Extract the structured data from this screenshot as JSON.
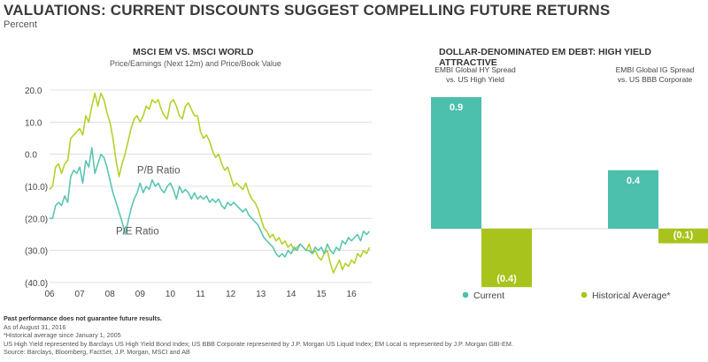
{
  "header": {
    "title": "VALUATIONS: CURRENT DISCOUNTS SUGGEST COMPELLING FUTURE RETURNS",
    "subtitle": "Percent"
  },
  "left_panel": {
    "title": "MSCI EM VS. MSCI WORLD",
    "subtitle": "Price/Earnings (Next 12m) and Price/Book Value"
  },
  "right_panel": {
    "title": "DOLLAR-DENOMINATED EM DEBT: HIGH YIELD ATTRACTIVE"
  },
  "footnotes": {
    "line1": "Past performance does not guarantee future results.",
    "line2": "As of August 31, 2016",
    "line3": "*Historical average since January 1, 2005",
    "line4": "US High Yield represented by Barclays US High Yield Bond Index; US BBB Corporate represented by J.P. Morgan US Liquid Index; EM Local is represented by J.P. Morgan GBI-EM.",
    "line5": "Source: Barclays, Bloomberg, FactSet, J.P. Morgan, MSCI and AB"
  },
  "colors": {
    "pb_line": "#b7cf2e",
    "pe_line": "#5cc5b3",
    "current_bar": "#4dbfad",
    "historical_bar": "#a8c41c",
    "grid": "#d9d9d9",
    "text": "#444444"
  },
  "chart_data": [
    {
      "type": "line",
      "title": "MSCI EM VS. MSCI WORLD",
      "subtitle": "Price/Earnings (Next 12m) and Price/Book Value",
      "ylim": [
        -40,
        20
      ],
      "yticks": [
        20,
        10,
        0,
        -10,
        -20,
        -30,
        -40
      ],
      "ytick_labels": [
        "20.0",
        "10.0",
        "0.0",
        "(10.0)",
        "(20.0)",
        "(30.0)",
        "(40.0)"
      ],
      "xlim": [
        2006.0,
        2016.67
      ],
      "xticks": [
        2006,
        2007,
        2008,
        2009,
        2010,
        2011,
        2012,
        2013,
        2014,
        2015,
        2016
      ],
      "xtick_labels": [
        "06",
        "07",
        "08",
        "09",
        "10",
        "11",
        "12",
        "13",
        "14",
        "15",
        "16"
      ],
      "grid": "horizontal",
      "series": [
        {
          "name": "P/B Ratio",
          "color_key": "pb_line",
          "label_at": [
            2008.9,
            -6
          ],
          "points": [
            [
              2006.0,
              -11
            ],
            [
              2006.1,
              -10
            ],
            [
              2006.2,
              -4
            ],
            [
              2006.3,
              -3
            ],
            [
              2006.4,
              -6
            ],
            [
              2006.5,
              -3
            ],
            [
              2006.6,
              -2
            ],
            [
              2006.7,
              5
            ],
            [
              2006.8,
              6
            ],
            [
              2006.9,
              7
            ],
            [
              2007.0,
              8
            ],
            [
              2007.1,
              6
            ],
            [
              2007.2,
              12
            ],
            [
              2007.3,
              10
            ],
            [
              2007.4,
              15
            ],
            [
              2007.5,
              19
            ],
            [
              2007.6,
              15
            ],
            [
              2007.7,
              19
            ],
            [
              2007.8,
              17
            ],
            [
              2007.9,
              13
            ],
            [
              2008.0,
              10
            ],
            [
              2008.1,
              5
            ],
            [
              2008.2,
              -2
            ],
            [
              2008.3,
              -7
            ],
            [
              2008.4,
              -3
            ],
            [
              2008.5,
              0
            ],
            [
              2008.6,
              4
            ],
            [
              2008.7,
              8
            ],
            [
              2008.8,
              11
            ],
            [
              2008.9,
              12
            ],
            [
              2009.0,
              10
            ],
            [
              2009.1,
              12
            ],
            [
              2009.2,
              15
            ],
            [
              2009.3,
              14
            ],
            [
              2009.4,
              17
            ],
            [
              2009.5,
              16
            ],
            [
              2009.6,
              17
            ],
            [
              2009.7,
              14
            ],
            [
              2009.8,
              12
            ],
            [
              2009.9,
              11
            ],
            [
              2010.0,
              16
            ],
            [
              2010.1,
              17
            ],
            [
              2010.2,
              15
            ],
            [
              2010.3,
              12
            ],
            [
              2010.4,
              11
            ],
            [
              2010.5,
              15
            ],
            [
              2010.6,
              16
            ],
            [
              2010.7,
              14
            ],
            [
              2010.8,
              12
            ],
            [
              2010.9,
              12
            ],
            [
              2011.0,
              7
            ],
            [
              2011.1,
              5
            ],
            [
              2011.2,
              6
            ],
            [
              2011.3,
              4
            ],
            [
              2011.4,
              1
            ],
            [
              2011.5,
              -1
            ],
            [
              2011.6,
              0
            ],
            [
              2011.7,
              -3
            ],
            [
              2011.8,
              -5
            ],
            [
              2011.9,
              -4
            ],
            [
              2012.0,
              -7
            ],
            [
              2012.1,
              -10
            ],
            [
              2012.2,
              -9
            ],
            [
              2012.3,
              -10
            ],
            [
              2012.4,
              -11
            ],
            [
              2012.5,
              -9
            ],
            [
              2012.6,
              -12
            ],
            [
              2012.7,
              -14
            ],
            [
              2012.8,
              -15
            ],
            [
              2012.9,
              -17
            ],
            [
              2013.0,
              -20
            ],
            [
              2013.1,
              -23
            ],
            [
              2013.2,
              -24
            ],
            [
              2013.3,
              -26
            ],
            [
              2013.4,
              -25
            ],
            [
              2013.5,
              -27
            ],
            [
              2013.6,
              -26
            ],
            [
              2013.7,
              -28
            ],
            [
              2013.8,
              -27
            ],
            [
              2013.9,
              -29
            ],
            [
              2014.0,
              -28
            ],
            [
              2014.1,
              -30
            ],
            [
              2014.2,
              -29
            ],
            [
              2014.3,
              -28
            ],
            [
              2014.4,
              -29
            ],
            [
              2014.5,
              -30
            ],
            [
              2014.6,
              -28
            ],
            [
              2014.7,
              -31
            ],
            [
              2014.8,
              -30
            ],
            [
              2014.9,
              -32
            ],
            [
              2015.0,
              -33
            ],
            [
              2015.1,
              -31
            ],
            [
              2015.2,
              -30
            ],
            [
              2015.3,
              -34
            ],
            [
              2015.4,
              -37
            ],
            [
              2015.5,
              -35
            ],
            [
              2015.6,
              -33
            ],
            [
              2015.7,
              -36
            ],
            [
              2015.8,
              -34
            ],
            [
              2015.9,
              -35
            ],
            [
              2016.0,
              -33
            ],
            [
              2016.1,
              -34
            ],
            [
              2016.2,
              -31
            ],
            [
              2016.3,
              -32
            ],
            [
              2016.4,
              -30
            ],
            [
              2016.5,
              -31
            ],
            [
              2016.6,
              -29
            ]
          ]
        },
        {
          "name": "P/E Ratio",
          "color_key": "pe_line",
          "label_at": [
            2008.2,
            -25
          ],
          "points": [
            [
              2006.0,
              -20
            ],
            [
              2006.1,
              -20
            ],
            [
              2006.2,
              -16
            ],
            [
              2006.3,
              -15
            ],
            [
              2006.4,
              -16
            ],
            [
              2006.5,
              -13
            ],
            [
              2006.6,
              -15
            ],
            [
              2006.7,
              -7
            ],
            [
              2006.8,
              -5
            ],
            [
              2006.9,
              -6
            ],
            [
              2007.0,
              -4
            ],
            [
              2007.1,
              -9
            ],
            [
              2007.2,
              -2
            ],
            [
              2007.3,
              -4
            ],
            [
              2007.4,
              2
            ],
            [
              2007.5,
              -6
            ],
            [
              2007.6,
              -3
            ],
            [
              2007.7,
              0
            ],
            [
              2007.8,
              -1
            ],
            [
              2007.9,
              -4
            ],
            [
              2008.0,
              -8
            ],
            [
              2008.1,
              -12
            ],
            [
              2008.2,
              -15
            ],
            [
              2008.3,
              -18
            ],
            [
              2008.4,
              -21
            ],
            [
              2008.5,
              -25
            ],
            [
              2008.6,
              -21
            ],
            [
              2008.7,
              -17
            ],
            [
              2008.8,
              -14
            ],
            [
              2008.9,
              -12
            ],
            [
              2009.0,
              -9
            ],
            [
              2009.1,
              -12
            ],
            [
              2009.2,
              -10
            ],
            [
              2009.3,
              -11
            ],
            [
              2009.4,
              -8
            ],
            [
              2009.5,
              -10
            ],
            [
              2009.6,
              -9
            ],
            [
              2009.7,
              -11
            ],
            [
              2009.8,
              -12
            ],
            [
              2009.9,
              -10
            ],
            [
              2010.0,
              -9
            ],
            [
              2010.1,
              -11
            ],
            [
              2010.2,
              -14
            ],
            [
              2010.3,
              -10
            ],
            [
              2010.4,
              -12
            ],
            [
              2010.5,
              -11
            ],
            [
              2010.6,
              -12
            ],
            [
              2010.7,
              -14
            ],
            [
              2010.8,
              -12
            ],
            [
              2010.9,
              -14
            ],
            [
              2011.0,
              -13
            ],
            [
              2011.1,
              -14
            ],
            [
              2011.2,
              -13
            ],
            [
              2011.3,
              -15
            ],
            [
              2011.4,
              -14
            ],
            [
              2011.5,
              -15
            ],
            [
              2011.6,
              -14
            ],
            [
              2011.7,
              -16
            ],
            [
              2011.8,
              -17
            ],
            [
              2011.9,
              -15
            ],
            [
              2012.0,
              -16
            ],
            [
              2012.1,
              -15
            ],
            [
              2012.2,
              -16
            ],
            [
              2012.3,
              -17
            ],
            [
              2012.4,
              -18
            ],
            [
              2012.5,
              -17
            ],
            [
              2012.6,
              -19
            ],
            [
              2012.7,
              -20
            ],
            [
              2012.8,
              -21
            ],
            [
              2012.9,
              -22
            ],
            [
              2013.0,
              -24
            ],
            [
              2013.1,
              -26
            ],
            [
              2013.2,
              -27
            ],
            [
              2013.3,
              -28
            ],
            [
              2013.4,
              -29
            ],
            [
              2013.5,
              -31
            ],
            [
              2013.6,
              -32
            ],
            [
              2013.7,
              -31
            ],
            [
              2013.8,
              -32
            ],
            [
              2013.9,
              -30
            ],
            [
              2014.0,
              -31
            ],
            [
              2014.1,
              -29
            ],
            [
              2014.2,
              -30
            ],
            [
              2014.3,
              -28
            ],
            [
              2014.4,
              -29
            ],
            [
              2014.5,
              -30
            ],
            [
              2014.6,
              -30
            ],
            [
              2014.7,
              -31
            ],
            [
              2014.8,
              -29
            ],
            [
              2014.9,
              -30
            ],
            [
              2015.0,
              -29
            ],
            [
              2015.1,
              -31
            ],
            [
              2015.2,
              -28
            ],
            [
              2015.3,
              -30
            ],
            [
              2015.4,
              -31
            ],
            [
              2015.5,
              -29
            ],
            [
              2015.6,
              -30
            ],
            [
              2015.7,
              -27
            ],
            [
              2015.8,
              -28
            ],
            [
              2015.9,
              -26
            ],
            [
              2016.0,
              -27
            ],
            [
              2016.1,
              -26
            ],
            [
              2016.2,
              -25
            ],
            [
              2016.3,
              -27
            ],
            [
              2016.4,
              -24
            ],
            [
              2016.5,
              -25
            ],
            [
              2016.6,
              -24
            ]
          ]
        }
      ]
    },
    {
      "type": "bar",
      "title": "DOLLAR-DENOMINATED EM DEBT: HIGH YIELD ATTRACTIVE",
      "categories": [
        "EMBI Global HY Spread\nvs. US High Yield",
        "EMBI Global IG Spread\nvs. US BBB Corporate"
      ],
      "series": [
        {
          "name": "Current",
          "color_key": "current_bar",
          "values": [
            0.9,
            0.4
          ],
          "labels": [
            "0.9",
            "0.4"
          ]
        },
        {
          "name": "Historical Average*",
          "color_key": "historical_bar",
          "values": [
            -0.4,
            -0.1
          ],
          "labels": [
            "(0.4)",
            "(0.1)"
          ]
        }
      ],
      "ylim": [
        -0.45,
        1.0
      ],
      "legend": "bottom",
      "grid": false
    }
  ]
}
